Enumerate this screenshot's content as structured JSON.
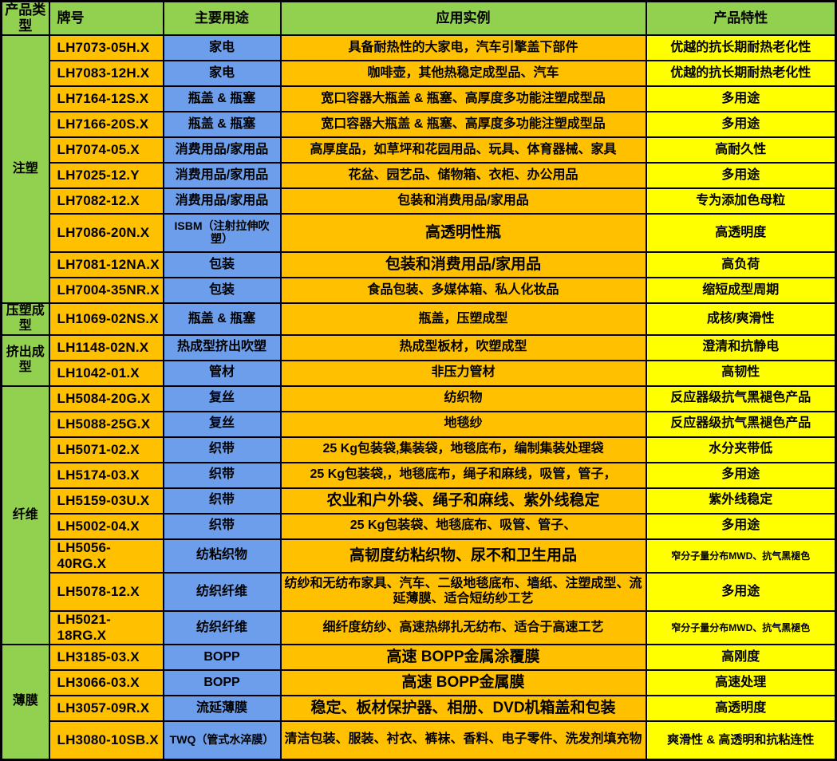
{
  "colors": {
    "header_green": "#92D050",
    "use_blue": "#6D9EEB",
    "grade_app_orange": "#FFC000",
    "feature_yellow": "#FFFF00",
    "border_black": "#000000"
  },
  "table": {
    "headers": [
      "产品类型",
      "牌号",
      "主要用途",
      "应用实例",
      "产品特性"
    ],
    "groups": [
      {
        "type": "注塑",
        "rows": [
          {
            "grade": "LH7073-05H.X",
            "use": "家电",
            "app": "具备耐热性的大家电，汽车引擎盖下部件",
            "feature": "优越的抗长期耐热老化性"
          },
          {
            "grade": "LH7083-12H.X",
            "use": "家电",
            "app": "咖啡壶，其他热稳定成型品、汽车",
            "feature": "优越的抗长期耐热老化性"
          },
          {
            "grade": "LH7164-12S.X",
            "use": "瓶盖 & 瓶塞",
            "app": "宽口容器大瓶盖 & 瓶塞、高厚度多功能注塑成型品",
            "feature": "多用途"
          },
          {
            "grade": "LH7166-20S.X",
            "use": "瓶盖 & 瓶塞",
            "app": "宽口容器大瓶盖 & 瓶塞、高厚度多功能注塑成型品",
            "feature": "多用途"
          },
          {
            "grade": "LH7074-05.X",
            "use": "消费用品/家用品",
            "app": "高厚度品，如草坪和花园用品、玩具、体育器械、家具",
            "feature": "高耐久性"
          },
          {
            "grade": "LH7025-12.Y",
            "use": "消费用品/家用品",
            "app": "花盆、园艺品、储物箱、衣柜、办公用品",
            "feature": "多用途"
          },
          {
            "grade": "LH7082-12.X",
            "use": "消费用品/家用品",
            "app": "包装和消费用品/家用品",
            "feature": "专为添加色母粒"
          },
          {
            "grade": "LH7086-20N.X",
            "use": "ISBM（注射拉伸吹塑）",
            "app": "高透明性瓶",
            "feature": "高透明度",
            "tall": true,
            "app_lg": true,
            "use_sm": true
          },
          {
            "grade": "LH7081-12NA.X",
            "use": "包装",
            "app": "包装和消费用品/家用品",
            "feature": "高负荷",
            "app_lg": true
          },
          {
            "grade": "LH7004-35NR.X",
            "use": "包装",
            "app": "食品包装、多媒体箱、私人化妆品",
            "feature": "缩短成型周期"
          }
        ]
      },
      {
        "type": "压塑成型",
        "rows": [
          {
            "grade": "LH1069-02NS.X",
            "use": "瓶盖 & 瓶塞",
            "app": "瓶盖，压塑成型",
            "feature": "成核/爽滑性"
          }
        ]
      },
      {
        "type": "挤出成型",
        "rows": [
          {
            "grade": "LH1148-02N.X",
            "use": "热成型挤出吹塑",
            "app": "热成型板材，吹塑成型",
            "feature": "澄清和抗静电"
          },
          {
            "grade": "LH1042-01.X",
            "use": "管材",
            "app": "非压力管材",
            "feature": "高韧性"
          }
        ]
      },
      {
        "type": "纤维",
        "rows": [
          {
            "grade": "LH5084-20G.X",
            "use": "复丝",
            "app": "纺织物",
            "feature": "反应器级抗气黑褪色产品"
          },
          {
            "grade": "LH5088-25G.X",
            "use": "复丝",
            "app": "地毯纱",
            "feature": "反应器级抗气黑褪色产品"
          },
          {
            "grade": "LH5071-02.X",
            "use": "织带",
            "app": "25 Kg包装袋,集装袋，地毯底布，编制集装处理袋",
            "feature": "水分夹带低"
          },
          {
            "grade": "LH5174-03.X",
            "use": "织带",
            "app": "25 Kg包装袋,，地毯底布，绳子和麻线，吸管，管子，",
            "feature": "多用途"
          },
          {
            "grade": "LH5159-03U.X",
            "use": "织带",
            "app": "农业和户外袋、绳子和麻线、紫外线稳定",
            "feature": "紫外线稳定",
            "app_lg": true
          },
          {
            "grade": "LH5002-04.X",
            "use": "织带",
            "app": "25 Kg包装袋、地毯底布、吸管、管子、",
            "feature": "多用途"
          },
          {
            "grade": "LH5056-40RG.X",
            "use": "纺粘织物",
            "app": "高韧度纺粘织物、尿不和卫生用品",
            "feature": "窄分子量分布MWD、抗气黑褪色",
            "app_lg": true,
            "feature_sm": true
          },
          {
            "grade": "LH5078-12.X",
            "use": "纺织纤维",
            "app": "纺纱和无纺布家具、汽车、二级地毯底布、墙纸、注塑成型、流延薄膜、适合短纺纱工艺",
            "feature": "多用途",
            "tall": true
          },
          {
            "grade": "LH5021-18RG.X",
            "use": "纺织纤维",
            "app": "细纤度纺纱、高速热绑扎无纺布、适合于高速工艺",
            "feature": "窄分子量分布MWD、抗气黑褪色",
            "feature_sm": true
          }
        ]
      },
      {
        "type": "薄膜",
        "rows": [
          {
            "grade": "LH3185-03.X",
            "use": "BOPP",
            "app": "高速 BOPP金属涂覆膜",
            "feature": "高刚度",
            "app_lg": true
          },
          {
            "grade": "LH3066-03.X",
            "use": "BOPP",
            "app": "高速 BOPP金属膜",
            "feature": "高速处理",
            "app_lg": true
          },
          {
            "grade": "LH3057-09R.X",
            "use": "流延薄膜",
            "app": "稳定、板材保护器、相册、DVD机箱盖和包装",
            "feature": "高透明度",
            "app_lg": true
          },
          {
            "grade": "LH3080-10SB.X",
            "use": "TWQ（管式水淬膜）",
            "app": "清洁包装、服装、衬衣、裤袜、香料、电子零件、洗发剂填充物",
            "feature": "爽滑性 & 高透明和抗粘连性",
            "tall": true,
            "use_sm": true,
            "feature_md": true
          }
        ]
      }
    ]
  }
}
